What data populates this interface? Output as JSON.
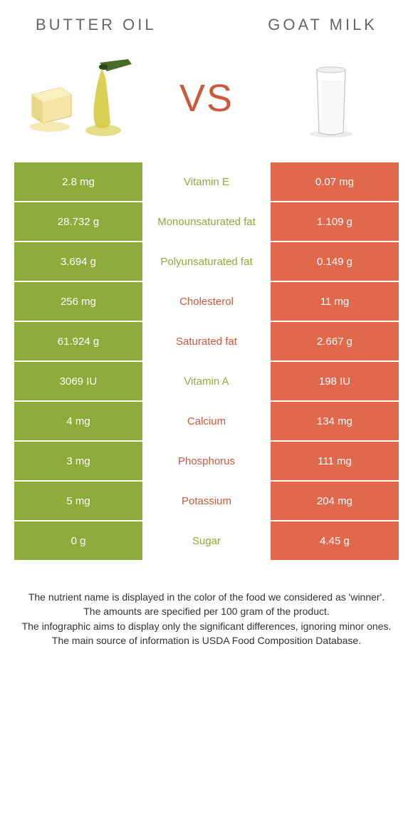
{
  "header": {
    "left": "BUTTER OIL",
    "right": "GOAT MILK"
  },
  "vs": "VS",
  "colors": {
    "left": "#8eac3b",
    "right": "#e0694d",
    "green_text": "#8eac3b",
    "orange_text": "#c85a3d",
    "vs_text": "#c85a3d",
    "header_text": "#666666"
  },
  "rows": [
    {
      "left": "2.8 mg",
      "mid": "Vitamin E",
      "right": "0.07 mg",
      "winner": "left"
    },
    {
      "left": "28.732 g",
      "mid": "Monounsaturated fat",
      "right": "1.109 g",
      "winner": "left"
    },
    {
      "left": "3.694 g",
      "mid": "Polyunsaturated fat",
      "right": "0.149 g",
      "winner": "left"
    },
    {
      "left": "256 mg",
      "mid": "Cholesterol",
      "right": "11 mg",
      "winner": "right"
    },
    {
      "left": "61.924 g",
      "mid": "Saturated fat",
      "right": "2.667 g",
      "winner": "right"
    },
    {
      "left": "3069 IU",
      "mid": "Vitamin A",
      "right": "198 IU",
      "winner": "left"
    },
    {
      "left": "4 mg",
      "mid": "Calcium",
      "right": "134 mg",
      "winner": "right"
    },
    {
      "left": "3 mg",
      "mid": "Phosphorus",
      "right": "111 mg",
      "winner": "right"
    },
    {
      "left": "5 mg",
      "mid": "Potassium",
      "right": "204 mg",
      "winner": "right"
    },
    {
      "left": "0 g",
      "mid": "Sugar",
      "right": "4.45 g",
      "winner": "left"
    }
  ],
  "footer": [
    "The nutrient name is displayed in the color of the food we considered as 'winner'.",
    "The amounts are specified per 100 gram of the product.",
    "The infographic aims to display only the significant differences, ignoring minor ones.",
    "The main source of information is USDA Food Composition Database."
  ]
}
